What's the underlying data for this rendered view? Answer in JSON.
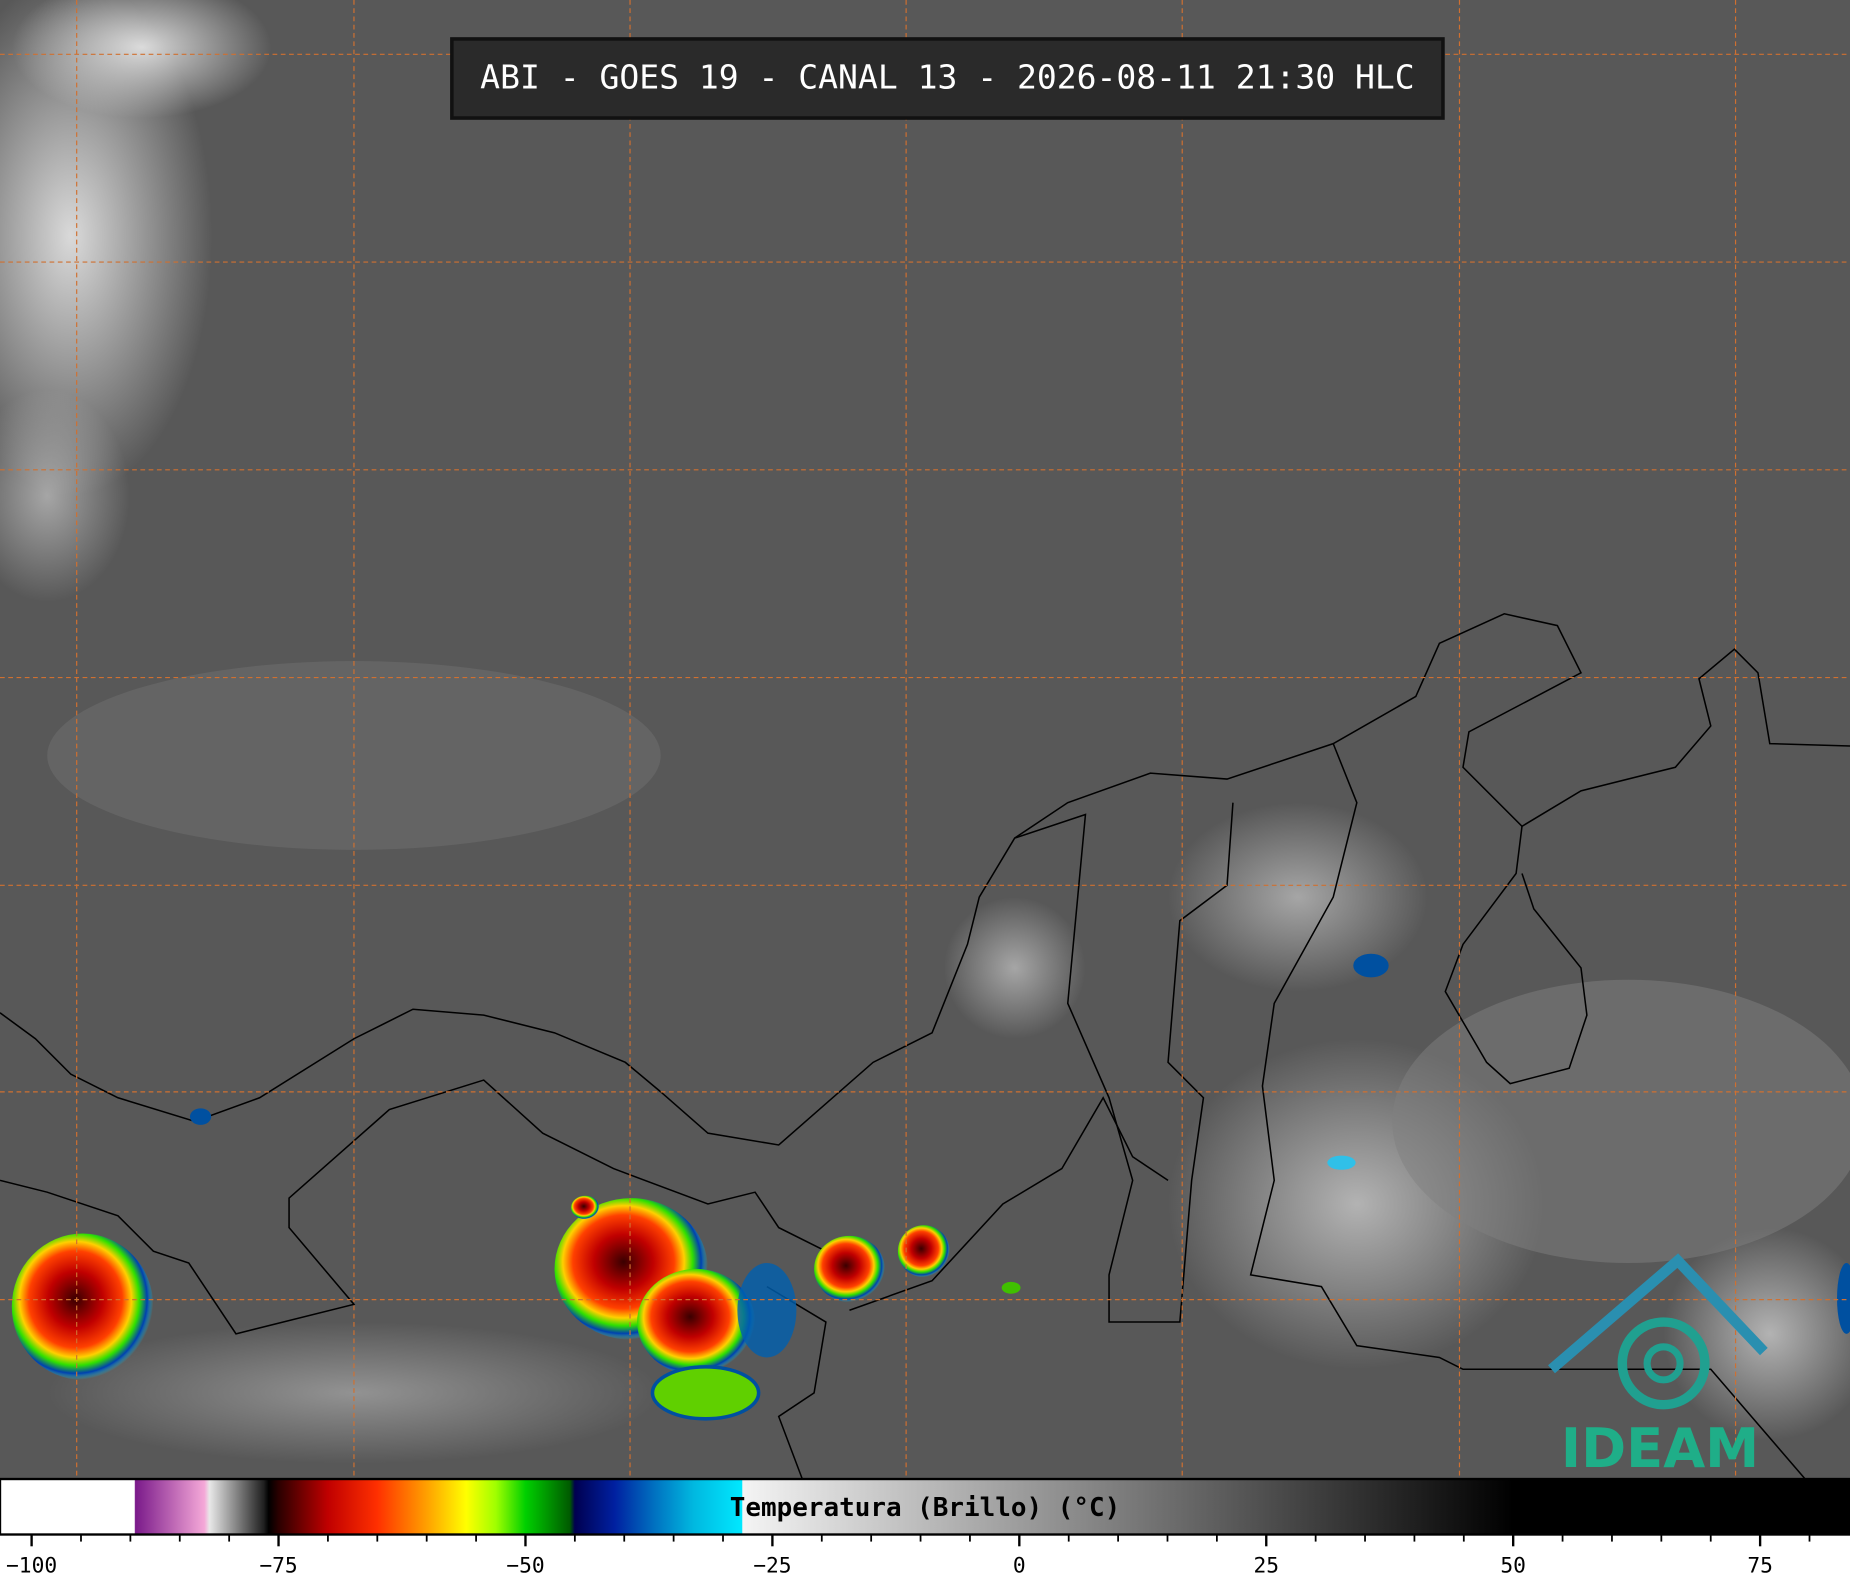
{
  "title": "ABI - GOES 19 - CANAL 13 - 2026-08-11 21:30 HLC",
  "logo": "IDEAM",
  "colorbar": {
    "label": "Temperatura (Brillo) (°C)",
    "lim": [
      -103.2,
      84.1
    ],
    "ticks": [
      {
        "value": -100,
        "label": "−100"
      },
      {
        "value": -75,
        "label": "−75"
      },
      {
        "value": -50,
        "label": "−50"
      },
      {
        "value": -25,
        "label": "−25"
      },
      0,
      25,
      50,
      75
    ],
    "minor_ticks": [
      -95,
      -90,
      -85,
      -80,
      -70,
      -65,
      -60,
      -55,
      -45,
      -40,
      -35,
      -30,
      -20,
      -15,
      -10,
      -5,
      5,
      10,
      15,
      20,
      30,
      35,
      40,
      45,
      55,
      60,
      65,
      70,
      80
    ],
    "colors": [
      [
        -103.2,
        "#ffffff"
      ],
      [
        -89.6,
        "#ffffff"
      ],
      [
        -89.5,
        "#7a1a8a"
      ],
      [
        -82.5,
        "#f5a8d8"
      ],
      [
        -82,
        "#e8e8e8"
      ],
      [
        -76.5,
        "#202020"
      ],
      [
        -76,
        "#000000"
      ],
      [
        -75,
        "#2a0000"
      ],
      [
        -70,
        "#c00000"
      ],
      [
        -65,
        "#ff3000"
      ],
      [
        -60,
        "#ffa000"
      ],
      [
        -56,
        "#ffff00"
      ],
      [
        -53,
        "#a0ff00"
      ],
      [
        -50,
        "#00d000"
      ],
      [
        -45.5,
        "#005a00"
      ],
      [
        -45,
        "#000050"
      ],
      [
        -41,
        "#0020a0"
      ],
      [
        -37,
        "#0070c0"
      ],
      [
        -33,
        "#00b8e0"
      ],
      [
        -28.1,
        "#00e8ff"
      ],
      [
        -28,
        "#f4f4f4"
      ],
      [
        50,
        "#000000"
      ],
      [
        84.1,
        "#000000"
      ]
    ]
  }
}
